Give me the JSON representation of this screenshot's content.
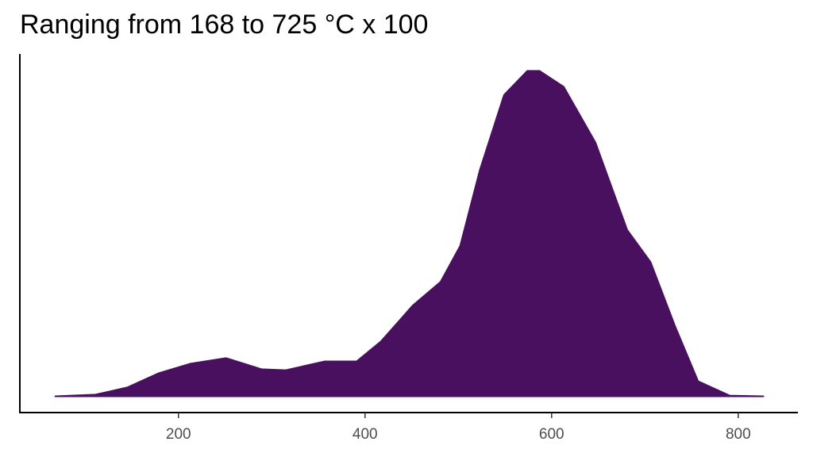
{
  "chart_data": {
    "type": "density",
    "title": "Ranging from 168 to 725 °C x 100",
    "x": [
      68,
      111,
      145,
      179,
      213,
      251,
      289,
      315,
      357,
      391,
      417,
      451,
      481,
      502,
      523,
      549,
      574,
      587,
      613,
      647,
      681,
      706,
      732,
      757,
      791,
      827
    ],
    "values": [
      0,
      0.005,
      0.027,
      0.071,
      0.1,
      0.117,
      0.083,
      0.08,
      0.107,
      0.107,
      0.168,
      0.278,
      0.351,
      0.461,
      0.693,
      0.924,
      0.998,
      0.998,
      0.949,
      0.778,
      0.51,
      0.412,
      0.217,
      0.046,
      0.002,
      0
    ],
    "color": "#48105f",
    "xlim": [
      30,
      864
    ],
    "xticks": [
      200,
      400,
      600,
      800
    ],
    "ylim": [
      -0.05,
      1.05
    ]
  }
}
